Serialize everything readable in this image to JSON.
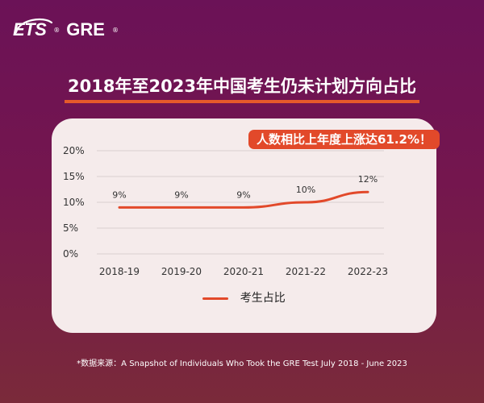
{
  "logo": {
    "ets": "ETS",
    "gre": "GRE",
    "reg": "®"
  },
  "title": "2018年至2023年中国考生仍未计划方向占比",
  "badge": "人数相比上年度上涨达61.2%！",
  "chart_data": {
    "type": "line",
    "categories": [
      "2018-19",
      "2019-20",
      "2020-21",
      "2021-22",
      "2022-23"
    ],
    "series": [
      {
        "name": "考生占比",
        "values": [
          9,
          9,
          9,
          10,
          12
        ],
        "labels": [
          "9%",
          "9%",
          "9%",
          "10%",
          "12%"
        ],
        "color": "#e2492a"
      }
    ],
    "y_ticks": [
      "20%",
      "15%",
      "10%",
      "5%",
      "0%"
    ],
    "ylim": [
      0,
      20
    ],
    "grid": true,
    "legend_position": "bottom"
  },
  "footnote": "*数据来源：A Snapshot of Individuals Who Took the GRE Test July 2018 - June 2023"
}
